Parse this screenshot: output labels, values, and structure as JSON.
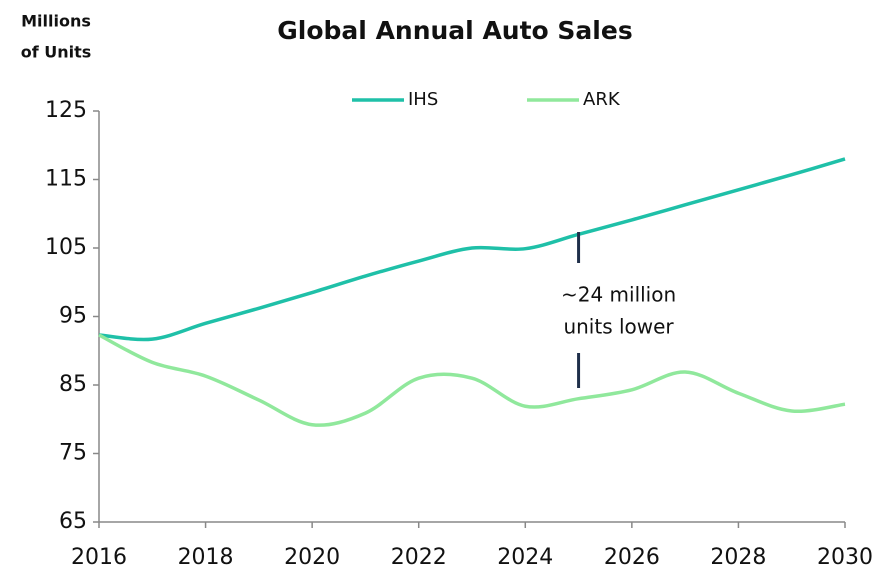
{
  "chart_data": {
    "type": "line",
    "title": "Global Annual Auto Sales",
    "y_label": [
      "Millions",
      "of Units"
    ],
    "x": [
      2016,
      2017,
      2018,
      2019,
      2020,
      2021,
      2022,
      2023,
      2024,
      2025,
      2026,
      2027,
      2028,
      2029,
      2030
    ],
    "series": [
      {
        "name": "IHS",
        "color": "#1fc0a8",
        "values": [
          92.3,
          91.7,
          94,
          96.2,
          98.5,
          100.9,
          103.1,
          105,
          104.9,
          107,
          109.1,
          111.3,
          113.5,
          115.7,
          118
        ]
      },
      {
        "name": "ARK",
        "color": "#90e89c",
        "values": [
          92.3,
          88.3,
          86.3,
          82.8,
          79.2,
          80.9,
          86,
          86,
          81.9,
          83,
          84.3,
          86.9,
          83.8,
          81.2,
          82.2
        ]
      }
    ],
    "annotation": {
      "x": 2025,
      "lines": [
        "~24 million",
        "units lower"
      ]
    },
    "xlim": [
      2016,
      2030
    ],
    "xticks": [
      2016,
      2018,
      2020,
      2022,
      2024,
      2026,
      2028,
      2030
    ],
    "ylim": [
      65,
      125
    ],
    "yticks": [
      65,
      75,
      85,
      95,
      105,
      115,
      125
    ],
    "legend": "top"
  }
}
